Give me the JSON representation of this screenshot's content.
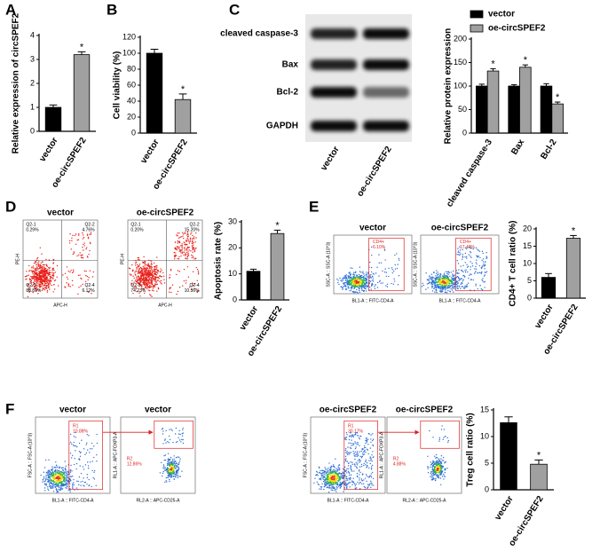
{
  "chart_data": [
    {
      "type": "bar",
      "panel": "A",
      "y_label": "Relative expression of circSPEF2",
      "categories": [
        "vector",
        "oe-circSPEF2"
      ],
      "values": [
        1.0,
        3.2
      ],
      "errors": [
        0.1,
        0.12
      ],
      "colors": [
        "#000000",
        "#a0a0a0"
      ],
      "significance": [
        null,
        "*"
      ],
      "ylim": [
        0,
        4
      ],
      "yticks": [
        0,
        1,
        2,
        3,
        4
      ]
    },
    {
      "type": "bar",
      "panel": "B",
      "y_label": "Cell viability (%)",
      "categories": [
        "vector",
        "oe-circSPEF2"
      ],
      "values": [
        100,
        42
      ],
      "errors": [
        5,
        7
      ],
      "colors": [
        "#000000",
        "#a0a0a0"
      ],
      "significance": [
        null,
        "*"
      ],
      "ylim": [
        0,
        120
      ],
      "yticks": [
        0,
        20,
        40,
        60,
        80,
        100,
        120
      ]
    },
    {
      "type": "grouped_bar",
      "panel": "C",
      "y_label": "Relative protein expression",
      "categories": [
        "cleaved caspase-3",
        "Bax",
        "Bcl-2"
      ],
      "series": [
        {
          "name": "vector",
          "color": "#000000",
          "values": [
            100,
            100,
            100
          ],
          "errors": [
            4,
            3,
            5
          ]
        },
        {
          "name": "oe-circSPEF2",
          "color": "#a0a0a0",
          "values": [
            132,
            140,
            62
          ],
          "errors": [
            5,
            5,
            4
          ],
          "significance": [
            "*",
            "*",
            "*"
          ]
        }
      ],
      "ylim": [
        0,
        200
      ],
      "yticks": [
        0,
        50,
        100,
        150,
        200
      ]
    },
    {
      "type": "bar",
      "panel": "D",
      "y_label": "Apoptosis rate (%)",
      "categories": [
        "vector",
        "oe-circSPEF2"
      ],
      "values": [
        11,
        25.5
      ],
      "errors": [
        0.8,
        1.3
      ],
      "colors": [
        "#000000",
        "#a0a0a0"
      ],
      "significance": [
        null,
        "*"
      ],
      "ylim": [
        0,
        30
      ],
      "yticks": [
        0,
        10,
        20,
        30
      ]
    },
    {
      "type": "bar",
      "panel": "E",
      "y_label": "CD4+ T cell ratio (%)",
      "categories": [
        "vector",
        "oe-circSPEF2"
      ],
      "values": [
        6,
        17.3
      ],
      "errors": [
        1.1,
        0.8
      ],
      "colors": [
        "#000000",
        "#a0a0a0"
      ],
      "significance": [
        null,
        "*"
      ],
      "ylim": [
        0,
        20
      ],
      "yticks": [
        0,
        5,
        10,
        15,
        20
      ]
    },
    {
      "type": "bar",
      "panel": "F",
      "y_label": "Treg cell ratio (%)",
      "categories": [
        "vector",
        "oe-circSPEF2"
      ],
      "values": [
        12.6,
        4.8
      ],
      "errors": [
        1.1,
        0.8
      ],
      "colors": [
        "#000000",
        "#a0a0a0"
      ],
      "significance": [
        null,
        "*"
      ],
      "ylim": [
        0,
        15
      ],
      "yticks": [
        0,
        5,
        10,
        15
      ]
    }
  ],
  "blot": {
    "rows": [
      "cleaved caspase-3",
      "Bax",
      "Bcl-2",
      "GAPDH"
    ],
    "columns": [
      "vector",
      "oe-circSPEF2"
    ]
  },
  "flow_plots": [
    {
      "title": "vector",
      "x_label": "APC-H",
      "y_label": "PE-H",
      "gate_labels": [
        [
          "Q2-1",
          "0.29%"
        ],
        [
          "Q2-2",
          "4.76%"
        ],
        [
          "Q2-3",
          "88.81%"
        ],
        [
          "Q2-4",
          "6.12%"
        ]
      ]
    },
    {
      "title": "oe-circSPEF2",
      "x_label": "APC-H",
      "y_label": "PE-H",
      "gate_labels": [
        [
          "Q2-1",
          "0.20%"
        ],
        [
          "Q2-2",
          "15.20%"
        ],
        [
          "Q2-3",
          "74.23%"
        ],
        [
          "Q2-4",
          "10.36%"
        ]
      ]
    },
    {
      "title": "vector",
      "x_label": "BL1-A :: FITC-CD4-A",
      "y_label": "SSC-A :: SSC-A (10^3)",
      "gate_labels": [
        [
          "CD4+",
          "6.10%"
        ]
      ]
    },
    {
      "title": "oe-circSPEF2",
      "x_label": "BL1-A :: FITC-CD4-A",
      "y_label": "SSC-A :: SSC-A (10^3)",
      "gate_labels": [
        [
          "CD4+",
          "17.40%"
        ]
      ]
    },
    {
      "title": "vector",
      "x_label": "BL1-A :: FITC-CD4-A",
      "y_label": "FSC-A :: FSC-A (10^3)",
      "gate_labels": [
        [
          "R1",
          "10.88%"
        ]
      ]
    },
    {
      "title": "vector",
      "x_label": "RL2-A :: APC-CD25-A",
      "y_label": "RL1-A :: APC-FOXP3-A",
      "gate_labels": [
        [
          "R2",
          "12.86%"
        ]
      ]
    },
    {
      "title": "oe-circSPEF2",
      "x_label": "BL1-A :: FITC-CD4-A",
      "y_label": "FSC-A :: FSC-A (10^3)",
      "gate_labels": [
        [
          "R1",
          "30.17%"
        ]
      ]
    },
    {
      "title": "oe-circSPEF2",
      "x_label": "RL2-A :: APC-CD25-A",
      "y_label": "RL1-A :: APC-FOXP3-A",
      "gate_labels": [
        [
          "R2",
          "4.88%"
        ]
      ]
    }
  ]
}
